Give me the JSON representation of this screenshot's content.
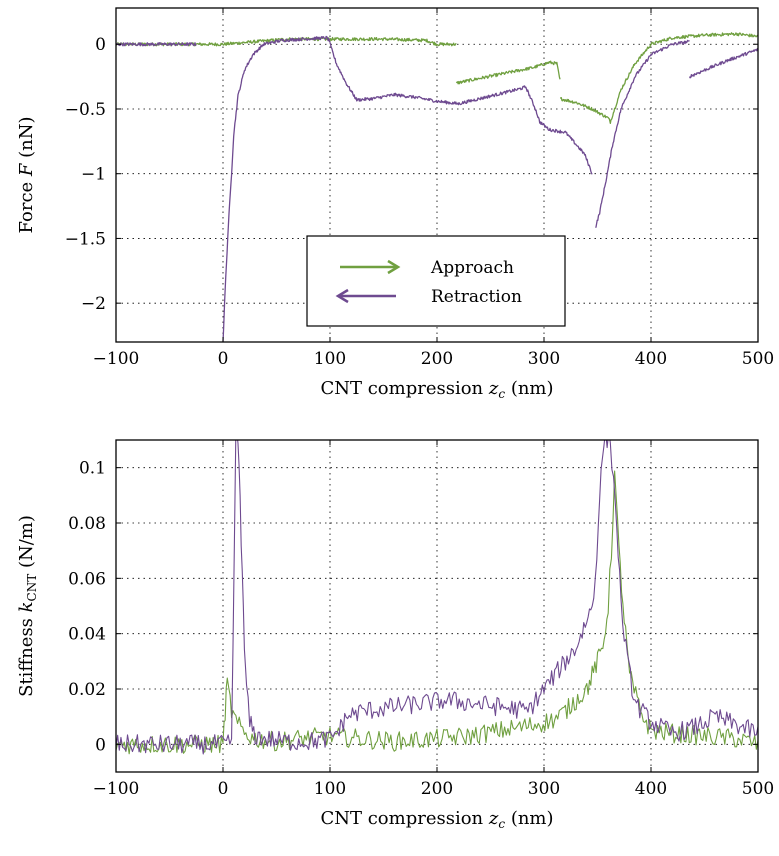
{
  "chart_data": [
    {
      "type": "line",
      "xlabel": "CNT compression z_c (nm)",
      "xlabel_parts": [
        "CNT compression ",
        "z",
        "c",
        " (nm)"
      ],
      "ylabel": "Force F (nN)",
      "ylabel_parts": [
        "Force ",
        "F",
        " (nN)"
      ],
      "xlim": [
        -100,
        500
      ],
      "ylim": [
        -2.3,
        0.28
      ],
      "xticks": [
        -100,
        0,
        100,
        200,
        300,
        400,
        500
      ],
      "xtick_labels": [
        "−100",
        "0",
        "100",
        "200",
        "300",
        "400",
        "500"
      ],
      "yticks": [
        0,
        -0.5,
        -1,
        -1.5,
        -2
      ],
      "ytick_labels": [
        "0",
        "−0.5",
        "−1",
        "−1.5",
        "−2"
      ],
      "grid": true,
      "legend_position": "lower-center",
      "series": [
        {
          "name": "Approach",
          "color": "#70a040",
          "arrow": "right",
          "segments": [
            [
              [
                -100,
                0.0
              ],
              [
                -30,
                0.0
              ],
              [
                0,
                0.0
              ],
              [
                30,
                0.02
              ],
              [
                60,
                0.04
              ],
              [
                100,
                0.04
              ],
              [
                150,
                0.04
              ],
              [
                190,
                0.03
              ],
              [
                200,
                0.0
              ],
              [
                218,
                0.0
              ]
            ],
            [
              [
                218,
                -0.3
              ],
              [
                230,
                -0.28
              ],
              [
                260,
                -0.23
              ],
              [
                290,
                -0.18
              ],
              [
                305,
                -0.14
              ],
              [
                312,
                -0.15
              ],
              [
                315,
                -0.28
              ]
            ],
            [
              [
                315,
                -0.42
              ],
              [
                330,
                -0.45
              ],
              [
                345,
                -0.5
              ],
              [
                360,
                -0.57
              ],
              [
                362,
                -0.6
              ],
              [
                366,
                -0.5
              ],
              [
                372,
                -0.35
              ],
              [
                385,
                -0.15
              ],
              [
                400,
                0.0
              ],
              [
                420,
                0.05
              ],
              [
                450,
                0.07
              ],
              [
                480,
                0.08
              ],
              [
                500,
                0.06
              ]
            ]
          ]
        },
        {
          "name": "Retraction",
          "color": "#6e4a90",
          "arrow": "left",
          "segments": [
            [
              [
                -100,
                0.0
              ],
              [
                -60,
                0.0
              ],
              [
                -25,
                0.0
              ]
            ],
            [
              [
                0,
                -2.3
              ],
              [
                2,
                -1.9
              ],
              [
                5,
                -1.4
              ],
              [
                8,
                -1.0
              ],
              [
                10,
                -0.7
              ],
              [
                14,
                -0.4
              ],
              [
                20,
                -0.2
              ],
              [
                28,
                -0.08
              ],
              [
                38,
                0.0
              ],
              [
                55,
                0.03
              ],
              [
                75,
                0.04
              ],
              [
                97,
                0.05
              ],
              [
                100,
                0.02
              ]
            ],
            [
              [
                100,
                0.0
              ],
              [
                106,
                -0.15
              ],
              [
                115,
                -0.3
              ],
              [
                125,
                -0.43
              ],
              [
                140,
                -0.42
              ],
              [
                160,
                -0.39
              ],
              [
                180,
                -0.41
              ],
              [
                200,
                -0.44
              ],
              [
                220,
                -0.46
              ],
              [
                240,
                -0.42
              ],
              [
                260,
                -0.38
              ],
              [
                275,
                -0.35
              ],
              [
                283,
                -0.33
              ],
              [
                292,
                -0.5
              ],
              [
                296,
                -0.6
              ],
              [
                305,
                -0.66
              ],
              [
                320,
                -0.68
              ],
              [
                338,
                -0.85
              ],
              [
                345,
                -1.0
              ]
            ],
            [
              [
                348,
                -1.42
              ],
              [
                352,
                -1.3
              ],
              [
                358,
                -1.05
              ],
              [
                364,
                -0.78
              ],
              [
                372,
                -0.5
              ],
              [
                385,
                -0.25
              ],
              [
                400,
                -0.08
              ],
              [
                420,
                0.0
              ],
              [
                436,
                0.02
              ]
            ],
            [
              [
                436,
                -0.25
              ],
              [
                450,
                -0.2
              ],
              [
                470,
                -0.13
              ],
              [
                490,
                -0.07
              ],
              [
                500,
                -0.04
              ]
            ]
          ]
        }
      ]
    },
    {
      "type": "line",
      "xlabel": "CNT compression z_c (nm)",
      "xlabel_parts": [
        "CNT compression ",
        "z",
        "c",
        " (nm)"
      ],
      "ylabel": "Stiffness k_CNT (N/m)",
      "ylabel_parts": [
        "Stiffness ",
        "k",
        "CNT",
        " (N/m)"
      ],
      "xlim": [
        -100,
        500
      ],
      "ylim": [
        -0.01,
        0.11
      ],
      "xticks": [
        -100,
        0,
        100,
        200,
        300,
        400,
        500
      ],
      "xtick_labels": [
        "−100",
        "0",
        "100",
        "200",
        "300",
        "400",
        "500"
      ],
      "yticks": [
        0,
        0.02,
        0.04,
        0.06,
        0.08,
        0.1
      ],
      "ytick_labels": [
        "0",
        "0.02",
        "0.04",
        "0.06",
        "0.08",
        "0.1"
      ],
      "grid": true,
      "series": [
        {
          "name": "Approach",
          "color": "#70a040",
          "x": [
            -100,
            -80,
            -60,
            -40,
            -20,
            0,
            2,
            4,
            8,
            12,
            20,
            30,
            50,
            70,
            100,
            130,
            160,
            200,
            230,
            260,
            290,
            310,
            320,
            330,
            340,
            345,
            350,
            355,
            360,
            363,
            366,
            370,
            375,
            380,
            390,
            400,
            420,
            450,
            480,
            500
          ],
          "y": [
            0.0,
            0.0,
            0.0,
            0.0,
            0.0,
            0.0,
            0.012,
            0.022,
            0.012,
            0.008,
            0.004,
            0.002,
            0.001,
            0.002,
            0.003,
            0.002,
            0.001,
            0.002,
            0.003,
            0.005,
            0.007,
            0.009,
            0.012,
            0.016,
            0.02,
            0.025,
            0.03,
            0.035,
            0.05,
            0.07,
            0.098,
            0.07,
            0.045,
            0.025,
            0.012,
            0.005,
            0.004,
            0.003,
            0.002,
            0.0
          ]
        },
        {
          "name": "Retraction",
          "color": "#6e4a90",
          "x": [
            -100,
            -80,
            -60,
            -40,
            -20,
            0,
            8,
            12,
            14,
            16,
            18,
            20,
            22,
            25,
            30,
            40,
            60,
            80,
            100,
            110,
            115,
            130,
            150,
            170,
            190,
            210,
            230,
            250,
            270,
            285,
            300,
            310,
            320,
            330,
            340,
            345,
            348,
            352,
            356,
            362,
            368,
            372,
            378,
            385,
            400,
            420,
            440,
            460,
            480,
            500
          ],
          "y": [
            0.0,
            0.0,
            0.0,
            0.0,
            0.0,
            0.0,
            0.0,
            0.11,
            0.11,
            0.09,
            0.06,
            0.035,
            0.02,
            0.008,
            0.003,
            0.002,
            0.001,
            0.001,
            0.002,
            0.006,
            0.01,
            0.012,
            0.013,
            0.014,
            0.015,
            0.016,
            0.015,
            0.014,
            0.013,
            0.012,
            0.02,
            0.025,
            0.03,
            0.035,
            0.045,
            0.05,
            0.06,
            0.09,
            0.11,
            0.11,
            0.08,
            0.05,
            0.03,
            0.015,
            0.008,
            0.004,
            0.006,
            0.01,
            0.007,
            0.004
          ]
        }
      ]
    }
  ],
  "legend": {
    "items": [
      {
        "label": "Approach",
        "color": "#70a040",
        "arrow": "right"
      },
      {
        "label": "Retraction",
        "color": "#6e4a90",
        "arrow": "left"
      }
    ]
  }
}
